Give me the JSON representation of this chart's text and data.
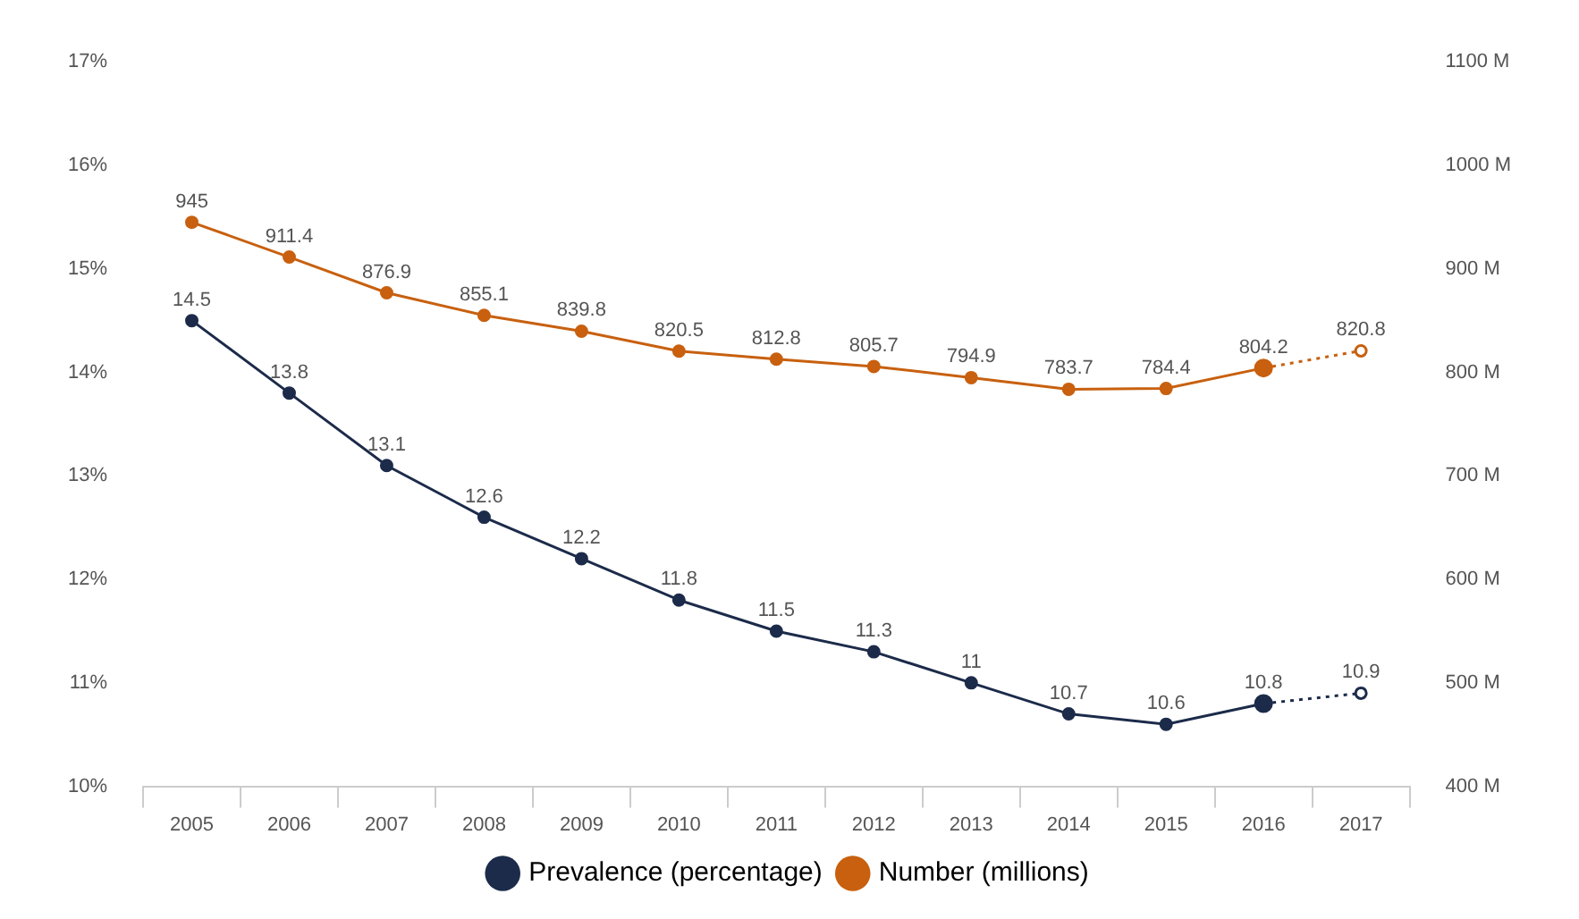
{
  "chart_data": {
    "type": "line",
    "categories": [
      "2005",
      "2006",
      "2007",
      "2008",
      "2009",
      "2010",
      "2011",
      "2012",
      "2013",
      "2014",
      "2015",
      "2016",
      "2017"
    ],
    "series": [
      {
        "name": "Prevalence (percentage)",
        "color": "#1c2b4a",
        "marker": "circle",
        "line_style": "solid",
        "values": [
          14.5,
          13.8,
          13.1,
          12.6,
          12.2,
          11.8,
          11.5,
          11.3,
          11,
          10.7,
          10.6,
          10.8,
          null
        ]
      },
      {
        "name": "Number (millions)",
        "color": "#c8600f",
        "axis": "y2",
        "marker": "circle",
        "line_style": "solid",
        "values": [
          945,
          911.4,
          876.9,
          855.1,
          839.8,
          820.5,
          812.8,
          805.7,
          794.9,
          783.7,
          784.4,
          804.2,
          null
        ]
      },
      {
        "color": "#1c2b4a",
        "marker": "circle",
        "line_style": "dotted",
        "values": [
          null,
          null,
          null,
          null,
          null,
          null,
          null,
          null,
          null,
          null,
          null,
          10.8,
          10.9
        ],
        "value_labels": [
          null,
          null,
          null,
          null,
          null,
          null,
          null,
          null,
          null,
          null,
          null,
          null,
          "10.9"
        ]
      },
      {
        "color": "#c8600f",
        "axis": "y2",
        "marker": "circle",
        "line_style": "dotted",
        "values": [
          null,
          null,
          null,
          null,
          null,
          null,
          null,
          null,
          null,
          null,
          null,
          804.2,
          820.8
        ],
        "value_labels": [
          null,
          null,
          null,
          null,
          null,
          null,
          null,
          null,
          null,
          null,
          null,
          null,
          "820.8"
        ]
      }
    ],
    "ylim": [
      10,
      17
    ],
    "yticks": [
      {
        "value": 10,
        "label": "10%"
      },
      {
        "value": 11,
        "label": "11%"
      },
      {
        "value": 12,
        "label": "12%"
      },
      {
        "value": 13,
        "label": "13%"
      },
      {
        "value": 14,
        "label": "14%"
      },
      {
        "value": 15,
        "label": "15%"
      },
      {
        "value": 16,
        "label": "16%"
      },
      {
        "value": 17,
        "label": "17%"
      }
    ],
    "y2lim": [
      400,
      1100
    ],
    "y2ticks": [
      {
        "value": 400,
        "label": "400 M"
      },
      {
        "value": 500,
        "label": "500 M"
      },
      {
        "value": 600,
        "label": "600 M"
      },
      {
        "value": 700,
        "label": "700 M"
      },
      {
        "value": 800,
        "label": "800 M"
      },
      {
        "value": 900,
        "label": "900 M"
      },
      {
        "value": 1000,
        "label": "1000 M"
      },
      {
        "value": 1100,
        "label": "1100 M"
      }
    ],
    "data_labels": true,
    "grid": false,
    "legend": "bottom"
  }
}
